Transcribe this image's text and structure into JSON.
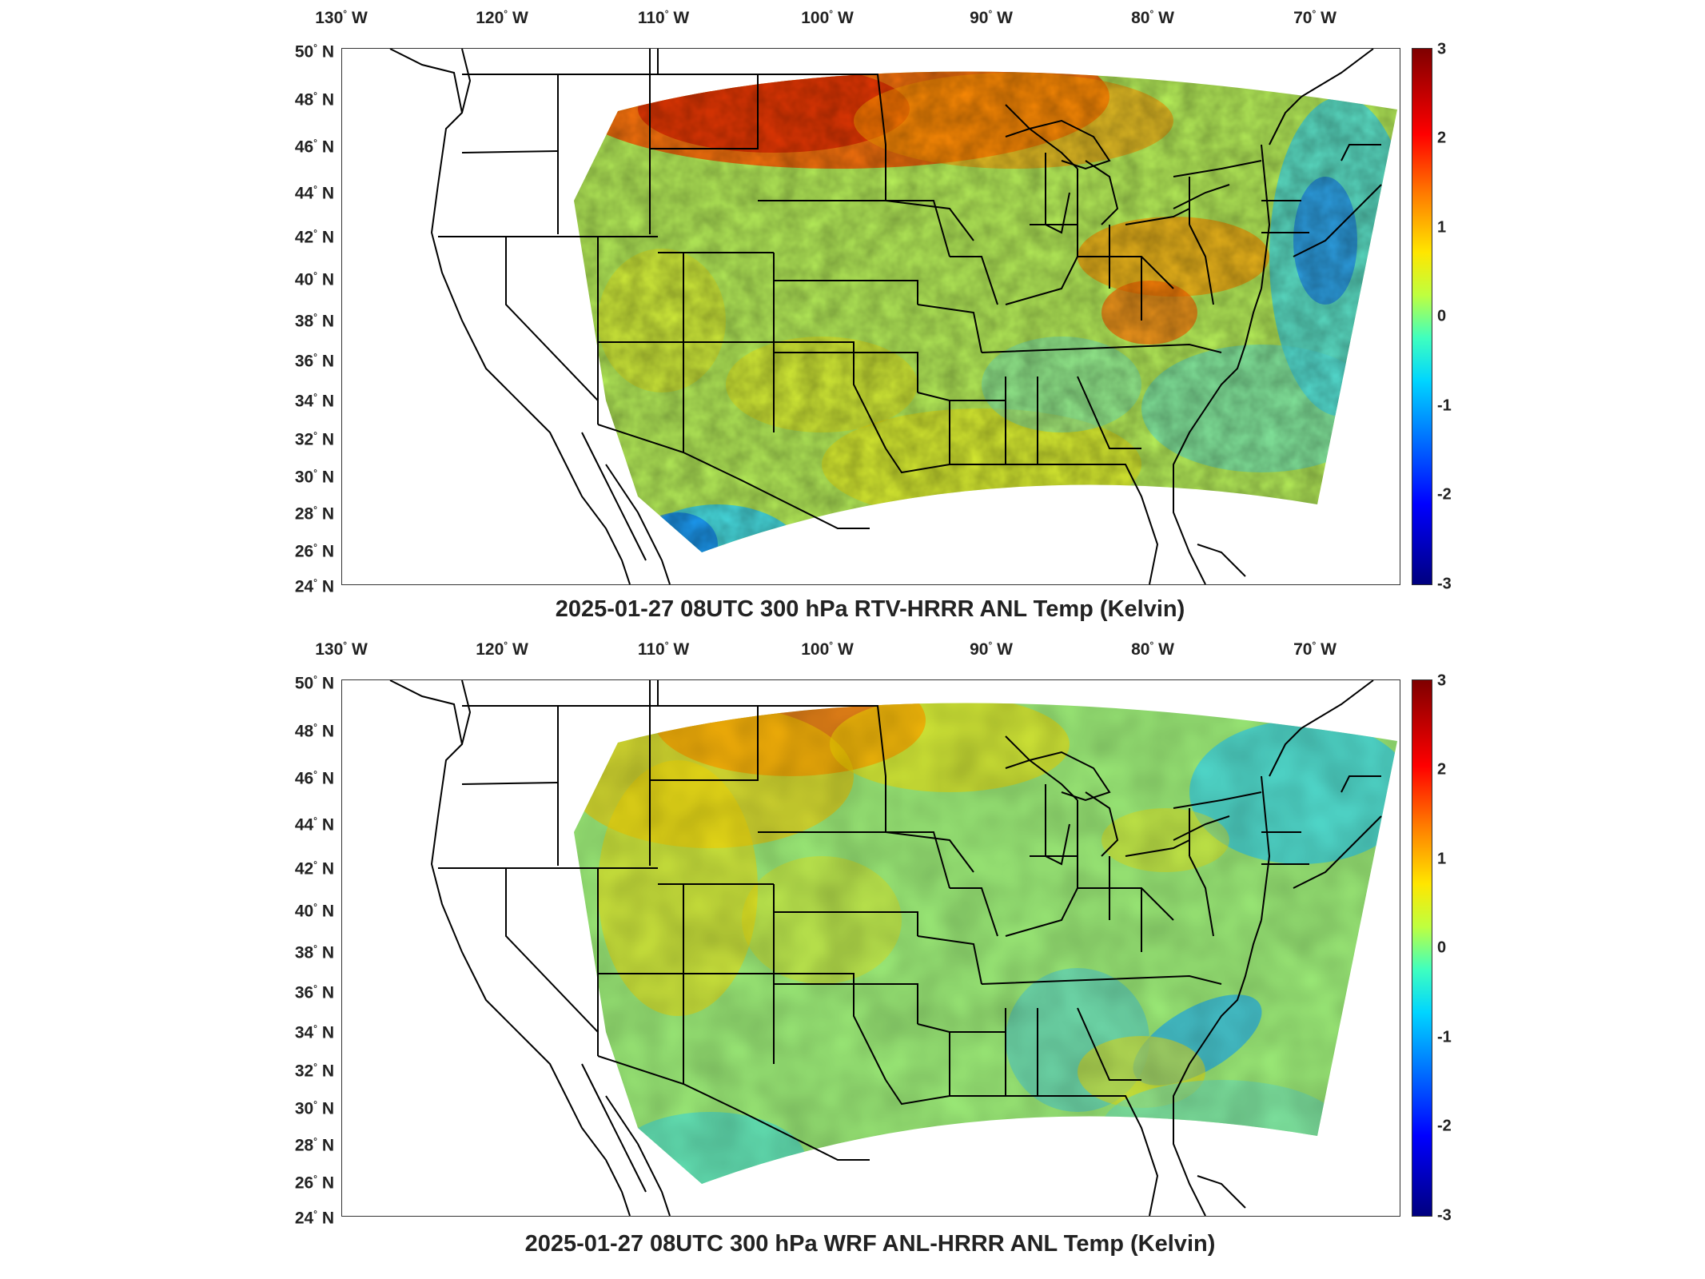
{
  "lon_labels": [
    "130",
    "120",
    "110",
    "100",
    "90",
    "80",
    "70"
  ],
  "lon_suffix": "W",
  "lat_labels": [
    "50",
    "48",
    "46",
    "44",
    "42",
    "40",
    "38",
    "36",
    "34",
    "32",
    "30",
    "28",
    "26",
    "24"
  ],
  "lat_suffix": "N",
  "colorbar": {
    "ticks": [
      "3",
      "2",
      "1",
      "0",
      "-1",
      "-2",
      "-3"
    ],
    "min": -3,
    "max": 3,
    "colormap": "jet"
  },
  "panels": [
    {
      "title": "2025-01-27 08UTC 300 hPa RTV-HRRR ANL Temp (Kelvin)"
    },
    {
      "title": "2025-01-27 08UTC 300 hPa WRF ANL-HRRR ANL Temp (Kelvin)"
    }
  ],
  "colors": {
    "outline": "#000000",
    "warm": "#ff6a00",
    "neutral": "#b8f05a",
    "cool": "#2ad4ff"
  }
}
